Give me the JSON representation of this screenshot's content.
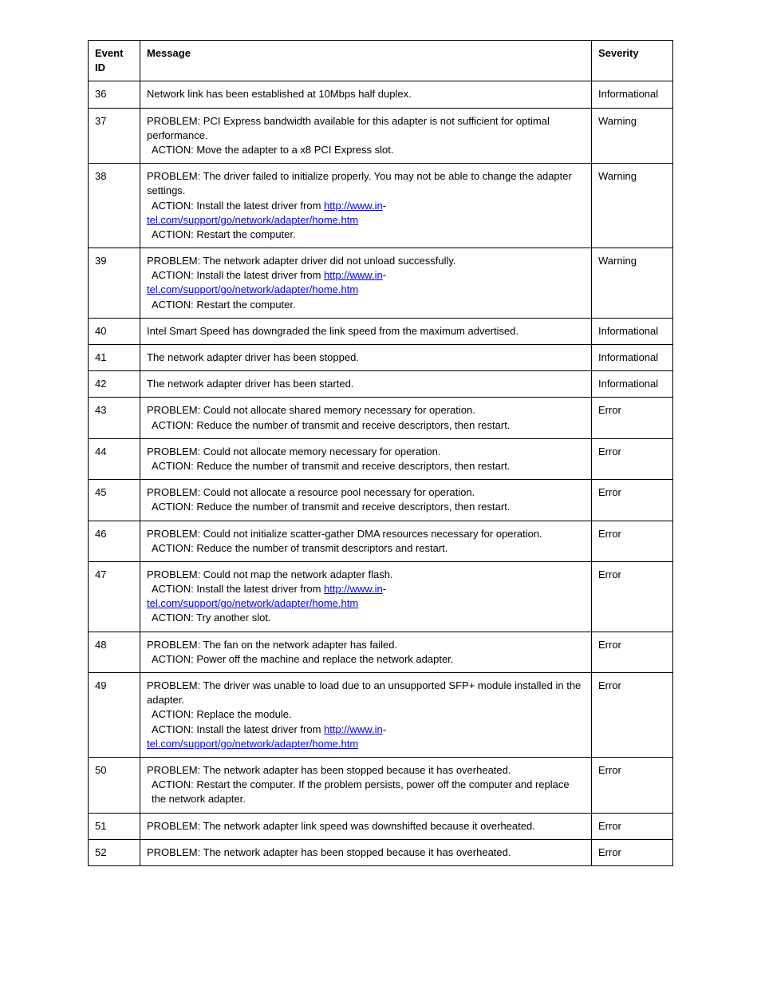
{
  "table": {
    "headers": {
      "event_id": "Event ID",
      "message": "Message",
      "severity": "Severity"
    },
    "link_text_1": "http://www.in",
    "link_text_2": "tel.com/support/go/network/adapter/home.htm",
    "rows": [
      {
        "id": "36",
        "severity": "Informational",
        "lines": [
          {
            "type": "plain",
            "text": "Network link has been established at 10Mbps half duplex."
          }
        ]
      },
      {
        "id": "37",
        "severity": "Warning",
        "lines": [
          {
            "type": "plain",
            "text": "PROBLEM: PCI Express bandwidth available for this adapter is not sufficient for optimal performance."
          },
          {
            "type": "indent",
            "text": "ACTION: Move the adapter to a x8 PCI Express slot."
          }
        ]
      },
      {
        "id": "38",
        "severity": "Warning",
        "lines": [
          {
            "type": "plain",
            "text": "PROBLEM: The driver failed to initialize properly. You may not be able to change the adapter settings."
          },
          {
            "type": "link_action"
          },
          {
            "type": "indent",
            "text": "ACTION: Restart the computer."
          }
        ]
      },
      {
        "id": "39",
        "severity": "Warning",
        "lines": [
          {
            "type": "plain",
            "text": "PROBLEM: The network adapter driver did not unload successfully."
          },
          {
            "type": "link_action"
          },
          {
            "type": "indent",
            "text": "ACTION: Restart the computer."
          }
        ]
      },
      {
        "id": "40",
        "severity": "Informational",
        "lines": [
          {
            "type": "plain",
            "text": "Intel Smart Speed has downgraded the link speed from the maximum advertised."
          }
        ]
      },
      {
        "id": "41",
        "severity": "Informational",
        "lines": [
          {
            "type": "plain",
            "text": "The network adapter driver has been stopped."
          }
        ]
      },
      {
        "id": "42",
        "severity": "Informational",
        "lines": [
          {
            "type": "plain",
            "text": "The network adapter driver has been started."
          }
        ]
      },
      {
        "id": "43",
        "severity": "Error",
        "lines": [
          {
            "type": "plain",
            "text": "PROBLEM: Could not allocate shared memory necessary for operation."
          },
          {
            "type": "indent",
            "text": "ACTION: Reduce the number of transmit and receive descriptors, then restart."
          }
        ]
      },
      {
        "id": "44",
        "severity": "Error",
        "lines": [
          {
            "type": "plain",
            "text": "PROBLEM: Could not allocate memory necessary for operation."
          },
          {
            "type": "indent",
            "text": "ACTION: Reduce the number of transmit and receive descriptors, then restart."
          }
        ]
      },
      {
        "id": "45",
        "severity": "Error",
        "lines": [
          {
            "type": "plain",
            "text": "PROBLEM: Could not allocate a resource pool necessary for operation."
          },
          {
            "type": "indent",
            "text": "ACTION: Reduce the number of transmit and receive descriptors, then restart."
          }
        ]
      },
      {
        "id": "46",
        "severity": "Error",
        "lines": [
          {
            "type": "plain",
            "text": "PROBLEM: Could not initialize scatter-gather DMA resources necessary for operation."
          },
          {
            "type": "indent",
            "text": "ACTION: Reduce the number of transmit descriptors and restart."
          }
        ]
      },
      {
        "id": "47",
        "severity": "Error",
        "lines": [
          {
            "type": "plain",
            "text": "PROBLEM: Could not map the network adapter flash."
          },
          {
            "type": "link_action"
          },
          {
            "type": "indent",
            "text": "ACTION: Try another slot."
          }
        ]
      },
      {
        "id": "48",
        "severity": "Error",
        "lines": [
          {
            "type": "plain",
            "text": "PROBLEM: The fan on the network adapter has failed."
          },
          {
            "type": "indent",
            "text": "ACTION: Power off the machine and replace the network adapter."
          }
        ]
      },
      {
        "id": "49",
        "severity": "Error",
        "lines": [
          {
            "type": "plain",
            "text": "PROBLEM: The driver was unable to load due to an unsupported SFP+ module installed in the adapter."
          },
          {
            "type": "indent",
            "text": "ACTION: Replace the module."
          },
          {
            "type": "link_action"
          }
        ]
      },
      {
        "id": "50",
        "severity": "Error",
        "lines": [
          {
            "type": "plain",
            "text": "PROBLEM: The network adapter has been stopped because it has overheated."
          },
          {
            "type": "indent",
            "text": "ACTION: Restart the computer. If the problem persists, power off the computer and replace the network adapter."
          }
        ]
      },
      {
        "id": "51",
        "severity": "Error",
        "lines": [
          {
            "type": "plain",
            "text": "PROBLEM: The network adapter link speed was downshifted because it overheated."
          }
        ]
      },
      {
        "id": "52",
        "severity": "Error",
        "lines": [
          {
            "type": "plain",
            "text": "PROBLEM: The network adapter has been stopped because it has overheated."
          }
        ]
      }
    ]
  }
}
